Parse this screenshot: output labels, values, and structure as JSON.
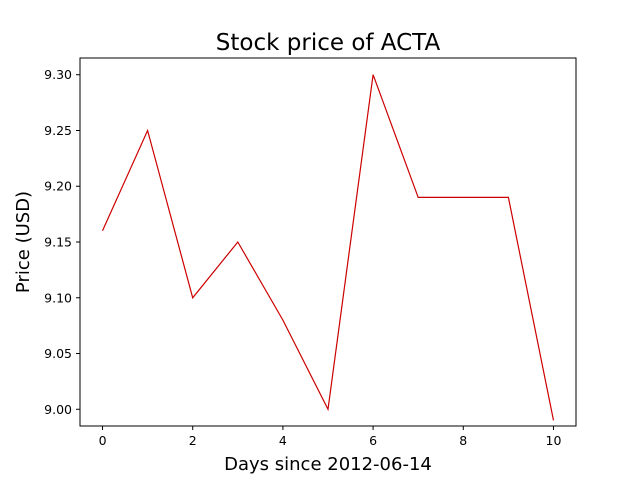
{
  "chart_data": {
    "type": "line",
    "title": "Stock price of ACTA",
    "xlabel": "Days since 2012-06-14",
    "ylabel": "Price (USD)",
    "xlim": [
      -0.5,
      10.5
    ],
    "ylim": [
      8.985,
      9.315
    ],
    "xticks": [
      0,
      2,
      4,
      6,
      8,
      10
    ],
    "xtick_labels": [
      "0",
      "2",
      "4",
      "6",
      "8",
      "10"
    ],
    "yticks": [
      9.0,
      9.05,
      9.1,
      9.15,
      9.2,
      9.25,
      9.3
    ],
    "ytick_labels": [
      "9.00",
      "9.05",
      "9.10",
      "9.15",
      "9.20",
      "9.25",
      "9.30"
    ],
    "grid": false,
    "series": [
      {
        "color": "#cc0000",
        "x": [
          0,
          1,
          2,
          3,
          4,
          5,
          6,
          7,
          8,
          9,
          10
        ],
        "y": [
          9.16,
          9.25,
          9.1,
          9.15,
          9.08,
          9.0,
          9.3,
          9.19,
          9.19,
          9.19,
          8.99
        ]
      }
    ]
  }
}
